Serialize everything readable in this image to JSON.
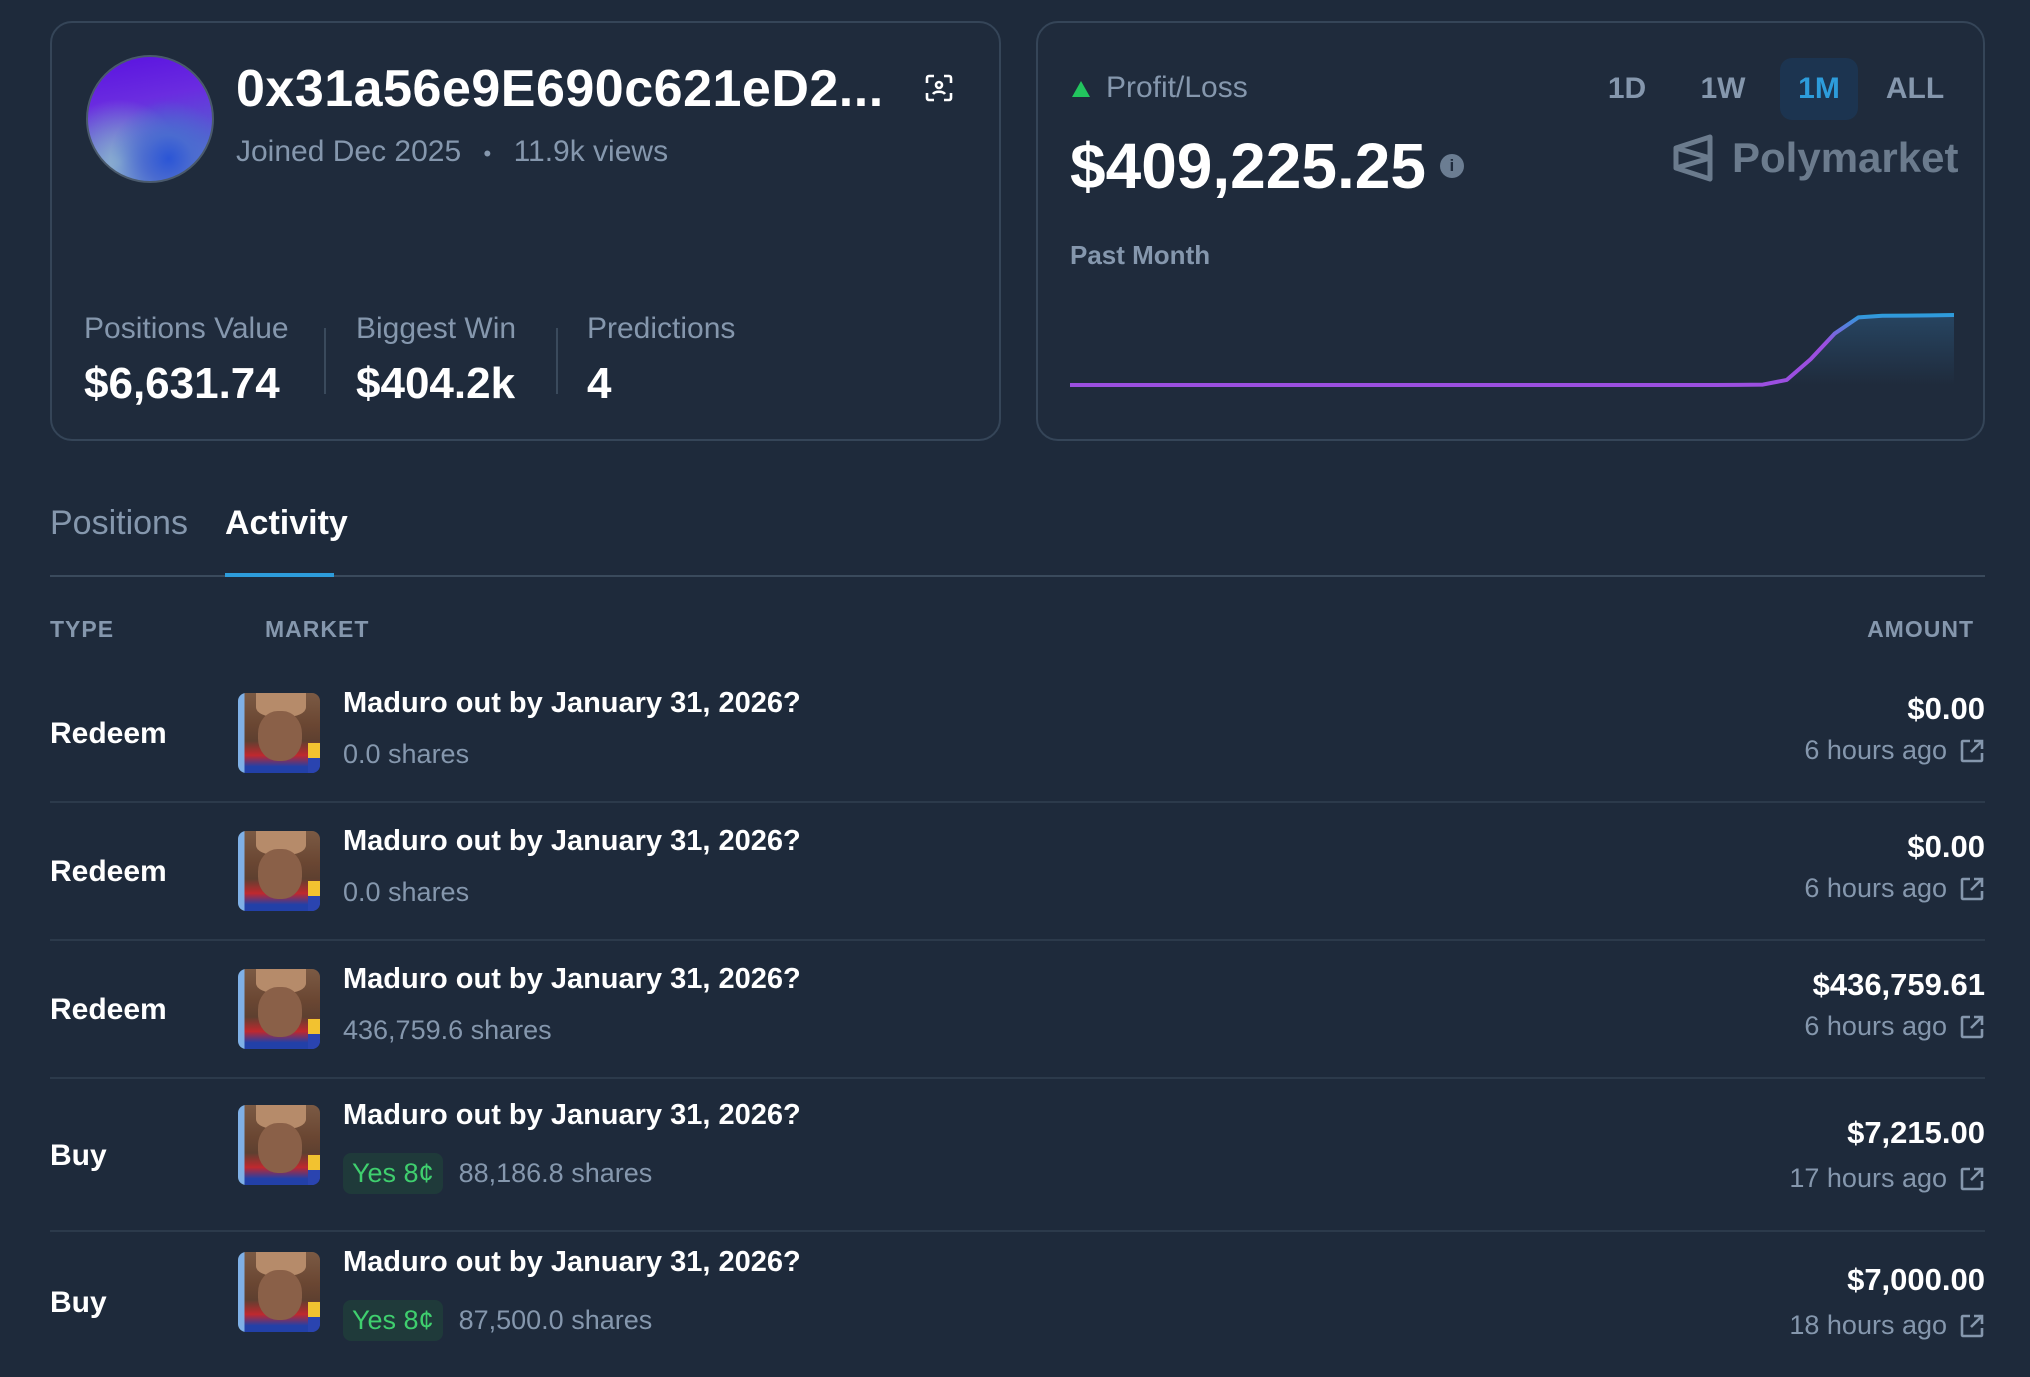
{
  "profile": {
    "address": "0x31a56e9E690c621eD2...",
    "joined": "Joined Dec 2025",
    "separator": "•",
    "views": "11.9k views",
    "stats": [
      {
        "label": "Positions Value",
        "value": "$6,631.74"
      },
      {
        "label": "Biggest Win",
        "value": "$404.2k"
      },
      {
        "label": "Predictions",
        "value": "4"
      }
    ]
  },
  "pnl": {
    "label": "Profit/Loss",
    "value": "$409,225.25",
    "period": "Past Month",
    "timeframes": [
      "1D",
      "1W",
      "1M",
      "ALL"
    ],
    "active_timeframe": "1M",
    "brand": "Polymarket",
    "colors": {
      "up": "#22c55e",
      "line_start": "#9b4fe0",
      "line_end": "#2d9cdb"
    }
  },
  "chart_data": {
    "type": "area",
    "title": "",
    "values": [
      0,
      0,
      0,
      0,
      0,
      0,
      0,
      0,
      0,
      0,
      0,
      0,
      0,
      0,
      0,
      0,
      0,
      0,
      0,
      0,
      0,
      0,
      0,
      0,
      0,
      0,
      0,
      0,
      500,
      2500,
      30000,
      150000,
      300000,
      395000,
      405000,
      406000,
      407000,
      409225.25
    ],
    "grid": false
  },
  "tabs": [
    {
      "label": "Positions",
      "active": false
    },
    {
      "label": "Activity",
      "active": true
    }
  ],
  "table": {
    "headers": {
      "type": "TYPE",
      "market": "MARKET",
      "amount": "AMOUNT"
    },
    "rows": [
      {
        "type": "Redeem",
        "market": "Maduro out by January 31, 2026?",
        "badge": "",
        "shares": "0.0 shares",
        "amount": "$0.00",
        "time": "6 hours ago"
      },
      {
        "type": "Redeem",
        "market": "Maduro out by January 31, 2026?",
        "badge": "",
        "shares": "0.0 shares",
        "amount": "$0.00",
        "time": "6 hours ago"
      },
      {
        "type": "Redeem",
        "market": "Maduro out by January 31, 2026?",
        "badge": "",
        "shares": "436,759.6 shares",
        "amount": "$436,759.61",
        "time": "6 hours ago"
      },
      {
        "type": "Buy",
        "market": "Maduro out by January 31, 2026?",
        "badge": "Yes 8¢",
        "shares": "88,186.8 shares",
        "amount": "$7,215.00",
        "time": "17 hours ago"
      },
      {
        "type": "Buy",
        "market": "Maduro out by January 31, 2026?",
        "badge": "Yes 8¢",
        "shares": "87,500.0 shares",
        "amount": "$7,000.00",
        "time": "18 hours ago"
      }
    ]
  }
}
